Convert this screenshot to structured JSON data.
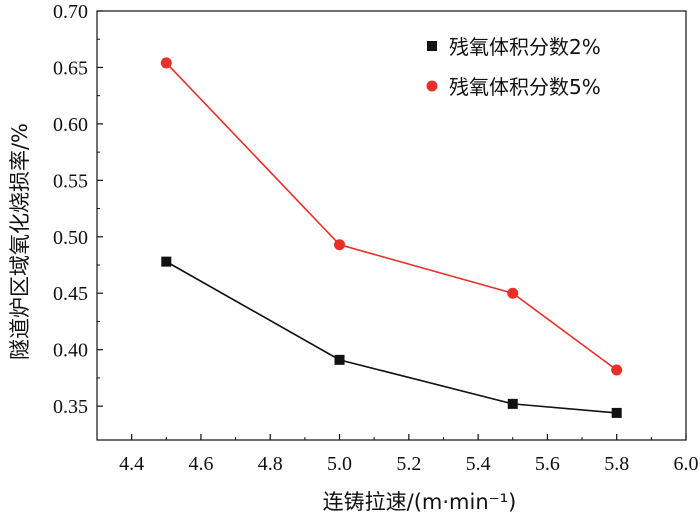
{
  "chart_data": {
    "type": "line",
    "xlabel": "连铸拉速/(m·min⁻¹)",
    "ylabel": "隧道炉区域氧化烧损率/%",
    "xlim": [
      4.3,
      6.0
    ],
    "ylim": [
      0.32,
      0.7
    ],
    "xticks": [
      4.4,
      4.6,
      4.8,
      5.0,
      5.2,
      5.4,
      5.6,
      5.8,
      6.0
    ],
    "xtick_labels": [
      "4.4",
      "4.6",
      "4.8",
      "5.0",
      "5.2",
      "5.4",
      "5.6",
      "5.8",
      "6.0"
    ],
    "yticks": [
      0.35,
      0.4,
      0.45,
      0.5,
      0.55,
      0.6,
      0.65,
      0.7
    ],
    "ytick_labels": [
      "0.35",
      "0.40",
      "0.45",
      "0.50",
      "0.55",
      "0.60",
      "0.65",
      "0.70"
    ],
    "legend_position": "top-right",
    "series": [
      {
        "name": "残氧体积分数2%",
        "marker": "square",
        "color": "#111111",
        "x": [
          4.5,
          5.0,
          5.5,
          5.8
        ],
        "y": [
          0.478,
          0.391,
          0.352,
          0.344
        ]
      },
      {
        "name": "残氧体积分数5%",
        "marker": "circle",
        "color": "#e8302a",
        "x": [
          4.5,
          5.0,
          5.5,
          5.8
        ],
        "y": [
          0.654,
          0.493,
          0.45,
          0.382
        ]
      }
    ]
  }
}
